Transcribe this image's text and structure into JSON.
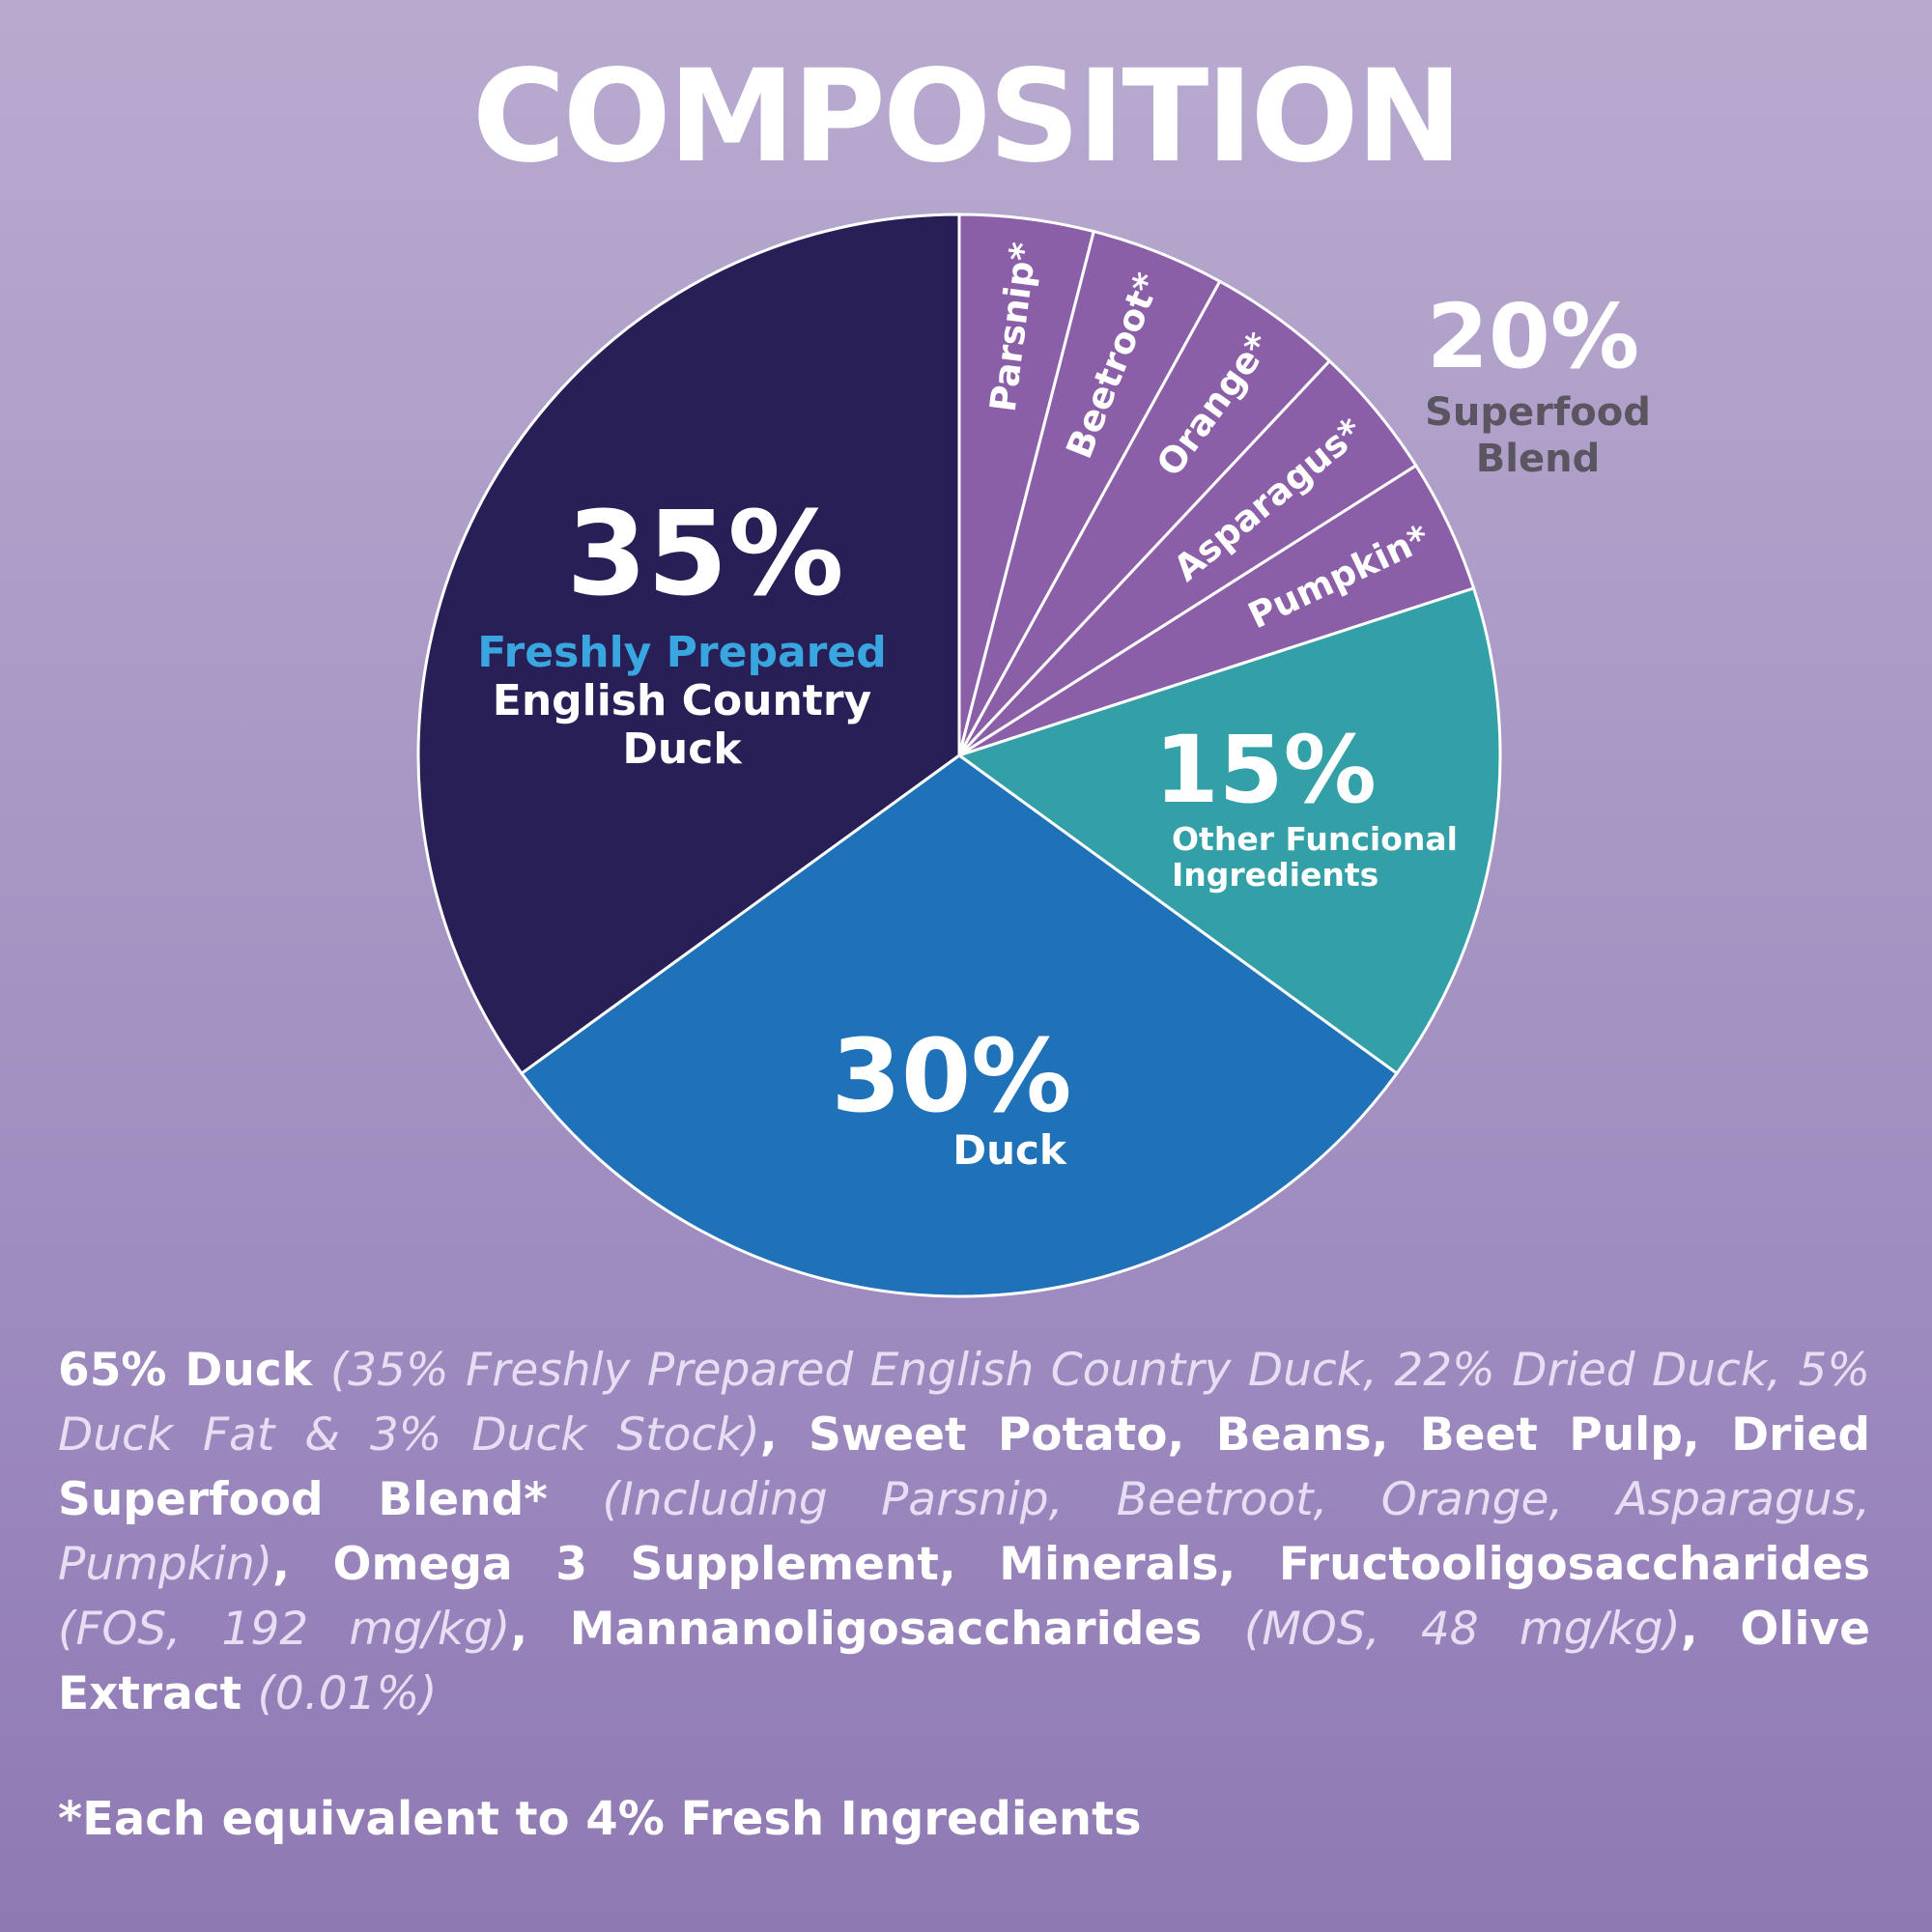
{
  "title": "COMPOSITION",
  "colors": {
    "fresh_duck": "#281f57",
    "duck": "#1f72b8",
    "other": "#33a0a8",
    "superfood": "#8a5fa8",
    "accent_blue": "#3aa6e0",
    "superfood_label": "#5a5560",
    "slice_border": "#ffffff"
  },
  "chart_data": {
    "type": "pie",
    "slices": [
      {
        "label": "Parsnip*",
        "value": 4,
        "group": "superfood"
      },
      {
        "label": "Beetroot*",
        "value": 4,
        "group": "superfood"
      },
      {
        "label": "Orange*",
        "value": 4,
        "group": "superfood"
      },
      {
        "label": "Asparagus*",
        "value": 4,
        "group": "superfood"
      },
      {
        "label": "Pumpkin*",
        "value": 4,
        "group": "superfood"
      },
      {
        "label": "Other Funcional Ingredients",
        "value": 15,
        "group": "other"
      },
      {
        "label": "Duck",
        "value": 30,
        "group": "duck"
      },
      {
        "label": "Freshly Prepared English Country Duck",
        "value": 35,
        "group": "fresh_duck"
      }
    ],
    "labels": {
      "fresh_duck": {
        "percent": "35%",
        "line1": "Freshly Prepared",
        "line2": "English Country",
        "line3": "Duck"
      },
      "duck": {
        "percent": "30%",
        "line1": "Duck"
      },
      "other": {
        "percent": "15%",
        "line1": "Other Funcional",
        "line2": "Ingredients"
      },
      "superfood": {
        "percent": "20%",
        "line1": "Superfood",
        "line2": "Blend"
      }
    }
  },
  "ingredients": [
    {
      "text": "65% Duck ",
      "style": "bold"
    },
    {
      "text": "(35% Freshly Prepared English Country Duck, 22% Dried Duck, 5% Duck Fat & 3% Duck Stock)",
      "style": "italic"
    },
    {
      "text": ", Sweet Potato, Beans, Beet Pulp, Dried Superfood Blend* ",
      "style": "bold"
    },
    {
      "text": "(Including Parsnip, Beetroot, Orange, Asparagus, Pumpkin)",
      "style": "italic"
    },
    {
      "text": ", Omega 3 Supplement, Minerals, Fructooligosaccharides ",
      "style": "bold"
    },
    {
      "text": "(FOS, 192 mg/kg)",
      "style": "italic"
    },
    {
      "text": ", Mannanoligosaccharides ",
      "style": "bold"
    },
    {
      "text": "(MOS, 48 mg/kg)",
      "style": "italic"
    },
    {
      "text": ", Olive Extract ",
      "style": "bold"
    },
    {
      "text": "(0.01%)",
      "style": "italic"
    }
  ],
  "footnote": "*Each equivalent to 4% Fresh Ingredients"
}
